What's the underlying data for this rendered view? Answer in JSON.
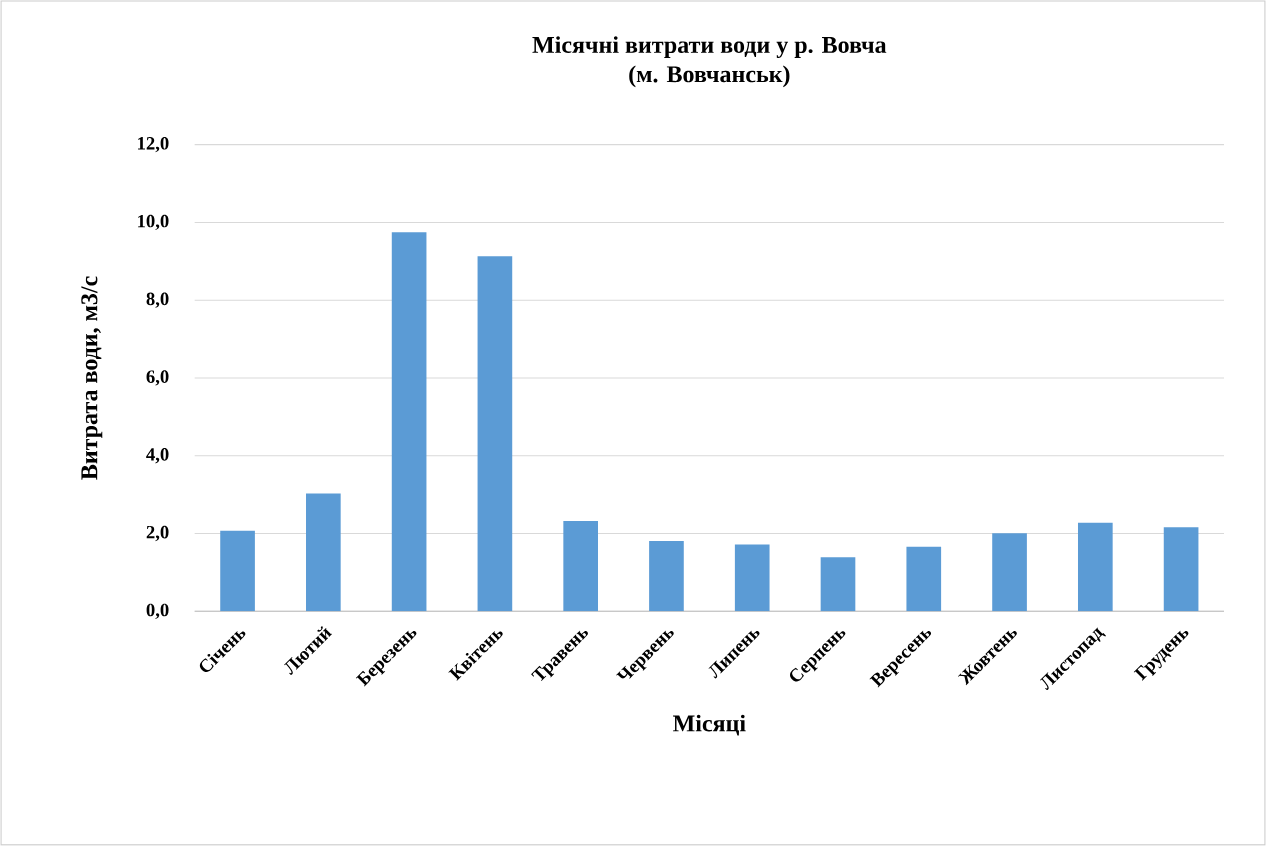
{
  "chart_data": {
    "type": "bar",
    "title": "Місячні витрати води у р. Вовча\n(м. Вовчанськ)",
    "xlabel": "Місяці",
    "ylabel": "Витрата води, м3/с",
    "categories": [
      "Січень",
      "Лютий",
      "Березень",
      "Квітень",
      "Травень",
      "Червень",
      "Липень",
      "Серпень",
      "Вересень",
      "Жовтень",
      "Листопад",
      "Грудень"
    ],
    "values": [
      2.07,
      3.03,
      9.75,
      9.13,
      2.32,
      1.81,
      1.72,
      1.39,
      1.66,
      2.01,
      2.28,
      2.16
    ],
    "color": "#5b9bd5",
    "ylim": [
      0,
      12
    ],
    "yticks": [
      {
        "value": 0,
        "label": "0,0"
      },
      {
        "value": 2,
        "label": "2,0"
      },
      {
        "value": 4,
        "label": "4,0"
      },
      {
        "value": 6,
        "label": "6,0"
      },
      {
        "value": 8,
        "label": "8,0"
      },
      {
        "value": 10,
        "label": "10,0"
      },
      {
        "value": 12,
        "label": "12,0"
      }
    ],
    "grid": "y"
  }
}
